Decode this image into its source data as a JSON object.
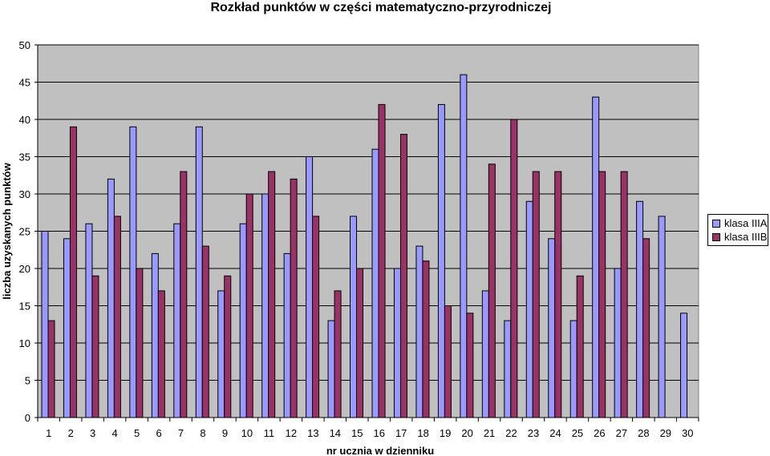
{
  "chart_data": {
    "type": "bar",
    "title": "Rozkład punktów w części matematyczno-przyrodniczej",
    "xlabel": "nr ucznia w dzienniku",
    "ylabel": "liczba uzyskanych punktów",
    "ylim": [
      0,
      50
    ],
    "yticks": [
      "0",
      "5",
      "10",
      "15",
      "20",
      "25",
      "30",
      "35",
      "40",
      "45",
      "50"
    ],
    "categories": [
      "1",
      "2",
      "3",
      "4",
      "5",
      "6",
      "7",
      "8",
      "9",
      "10",
      "11",
      "12",
      "13",
      "14",
      "15",
      "16",
      "17",
      "18",
      "19",
      "20",
      "21",
      "22",
      "23",
      "24",
      "25",
      "26",
      "27",
      "28",
      "29",
      "30"
    ],
    "series": [
      {
        "name": "klasa IIIA",
        "color": "#9999ff",
        "values": [
          25,
          24,
          26,
          32,
          39,
          22,
          26,
          39,
          17,
          26,
          30,
          22,
          35,
          13,
          27,
          36,
          20,
          23,
          42,
          46,
          17,
          13,
          29,
          24,
          13,
          43,
          20,
          29,
          27,
          14
        ]
      },
      {
        "name": "klasa IIIB",
        "color": "#993366",
        "values": [
          13,
          39,
          19,
          27,
          20,
          17,
          33,
          23,
          19,
          30,
          33,
          32,
          27,
          17,
          20,
          42,
          38,
          21,
          15,
          14,
          34,
          40,
          33,
          33,
          19,
          33,
          33,
          24,
          null,
          null
        ]
      }
    ],
    "grid": true,
    "legend_position": "right",
    "plot_background": "#c0c0c0"
  }
}
